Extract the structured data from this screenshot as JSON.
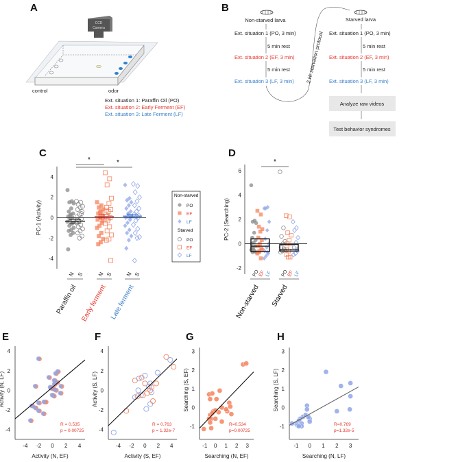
{
  "panel_a": {
    "label": "A",
    "camera_line1": "CCD",
    "camera_line2": "Camera",
    "control": "control",
    "odor": "odor",
    "legend": [
      "Ext. situation 1: Paraffin Oil (PO)",
      "Ext. situation 2: Early Ferment (EF)",
      "Ext. situation 3: Late Ferment (LF)"
    ]
  },
  "panel_b": {
    "label": "B",
    "non_starved": "Non-starved larva",
    "starved": "Starved larva",
    "step1": "Ext. situation 1 (PO, 3 min)",
    "step2": "Ext. situation 2 (EF, 3 min)",
    "step3": "Ext. situation 3 (LF, 3 min)",
    "rest": "5 min rest",
    "protocol": "2 Hr starvation protocol",
    "box1": "Analyze raw videos",
    "box2": "Test behavior syndromes"
  },
  "colors": {
    "PO": "#8a8a8a",
    "EF": "#f4845f",
    "LF": "#8fa6e8",
    "red_text": "#e8352a",
    "blue_text": "#3a7ec9"
  },
  "legend": {
    "non_starved": "Non-starved",
    "starved": "Starved",
    "items": [
      "PO",
      "EF",
      "LF"
    ]
  },
  "chart_data": [
    {
      "panel": "C",
      "type": "scatter",
      "ylabel": "PC-1 (Activity)",
      "ylim": [
        -5,
        5
      ],
      "yticks": [
        -4,
        -2,
        0,
        2,
        4
      ],
      "significance": [
        "*",
        "*"
      ],
      "groups": [
        {
          "name": "Paraffin oil",
          "key": "PO",
          "mean": -0.35,
          "sem": 0.18,
          "N": [
            2.7,
            1.6,
            1.5,
            1.4,
            0.9,
            0.6,
            0.4,
            0.3,
            0.1,
            0,
            -0.2,
            -0.4,
            -0.6,
            -0.8,
            -1,
            -1.2,
            -1.3,
            -1.5,
            -1.7,
            -3.1,
            -0.5,
            0.2
          ],
          "S": [
            1.6,
            1.5,
            1.3,
            1.1,
            1,
            0.8,
            0.6,
            0.3,
            0.1,
            -0.1,
            -0.3,
            -0.5,
            -0.7,
            -0.9,
            -1.1,
            -1.3,
            -1.5,
            -1.8,
            -2,
            -0.2,
            0.4
          ]
        },
        {
          "name": "Early ferment",
          "key": "EF",
          "mean": 0.1,
          "sem": 0.2,
          "N": [
            1.5,
            1.2,
            1,
            0.8,
            0.6,
            0.4,
            0.2,
            0,
            -0.2,
            -0.5,
            -0.8,
            -1,
            -1.5,
            -1.8,
            -2.1,
            -2.4,
            -2.6,
            -0.3,
            0.5
          ],
          "S": [
            4.4,
            3.8,
            3.2,
            1.9,
            1.4,
            1,
            0.8,
            0.6,
            0.3,
            0,
            -0.3,
            -0.6,
            -0.9,
            -1.3,
            -1.7,
            -2.1,
            -2.2,
            -4.2,
            -0.1,
            0.7
          ]
        },
        {
          "name": "Late ferment",
          "key": "LF",
          "mean": 0.15,
          "sem": 0.17,
          "N": [
            3.2,
            1.9,
            1.7,
            1.5,
            1.2,
            0.9,
            0.6,
            0.3,
            0,
            -0.2,
            -0.5,
            -0.8,
            -1.2,
            -1.5,
            -1.8,
            -2.2,
            -3,
            0.1,
            0.4
          ],
          "S": [
            3.3,
            3.1,
            2.5,
            2,
            1.6,
            1.2,
            0.9,
            0.6,
            0.3,
            0,
            -0.3,
            -0.7,
            -1.1,
            -1.5,
            -1.9,
            -2,
            -4.2,
            0.2
          ]
        }
      ],
      "sublabels": [
        "N",
        "S"
      ]
    },
    {
      "panel": "D",
      "type": "scatter",
      "ylabel": "PC-2 (Searching)",
      "ylim": [
        -2.5,
        6.5
      ],
      "yticks": [
        -2,
        0,
        2,
        4,
        6
      ],
      "significance": [
        "*"
      ],
      "groups": [
        {
          "name": "Non-starved",
          "box": {
            "q1": -0.65,
            "median": -0.2,
            "q3": 0.4
          },
          "PO": [
            4.8,
            1.9,
            1.8,
            1.7,
            0.9,
            0.5,
            0.3,
            0.1,
            0,
            -0.2,
            -0.4,
            -0.5,
            -0.6,
            -0.7,
            -0.7,
            -0.6,
            -0.3
          ],
          "EF": [
            2.7,
            2.4,
            1.4,
            1.2,
            1,
            0.5,
            0.3,
            0,
            -0.2,
            -0.4,
            -0.6,
            -0.8,
            -1.2,
            -0.7,
            -0.5
          ],
          "LF": [
            2.9,
            3,
            2.9,
            1.8,
            1.1,
            0.4,
            0,
            -0.3,
            -0.6,
            -0.8,
            -1,
            -1.2,
            -0.7
          ]
        },
        {
          "name": "Starved",
          "box": {
            "q1": -0.6,
            "median": -0.45,
            "q3": -0.05
          },
          "PO": [
            5.9,
            1.3,
            0.6,
            0.2,
            0,
            -0.3,
            -0.5,
            -0.6,
            -0.7,
            -0.4
          ],
          "EF": [
            2.3,
            2.2,
            0.9,
            0.7,
            0.3,
            0,
            -0.3,
            -0.6,
            -0.9,
            -1.1,
            -1.1,
            -0.5
          ],
          "LF": [
            1.8,
            1.3,
            1.1,
            0.5,
            0.1,
            -0.3,
            -0.6,
            -0.8,
            -0.9,
            -0.5
          ]
        }
      ],
      "sublabels": [
        "PO",
        "EF",
        "LF"
      ]
    },
    {
      "panel": "E",
      "type": "scatter",
      "xlabel": "Activity (N, EF)",
      "ylabel": "Activity (N, LF)",
      "xlim": [
        -5.5,
        4.8
      ],
      "ylim": [
        -5,
        4.5
      ],
      "xticks": [
        -4,
        -2,
        0,
        2,
        4
      ],
      "yticks": [
        -4,
        -2,
        0,
        2,
        4
      ],
      "marker": "filled-mix",
      "stats": [
        "R = 0.535",
        "p = 0.00725"
      ],
      "fit": [
        [
          -5.5,
          -2.9
        ],
        [
          4.8,
          3.1
        ]
      ],
      "points": [
        [
          -2,
          3.2
        ],
        [
          -2.5,
          0.4
        ],
        [
          0.5,
          1.7
        ],
        [
          0.8,
          1.9
        ],
        [
          -0.5,
          1.3
        ],
        [
          0.3,
          1
        ],
        [
          0.7,
          0.8
        ],
        [
          1.3,
          0.4
        ],
        [
          -0.3,
          0.3
        ],
        [
          0,
          0.2
        ],
        [
          0.2,
          0.1
        ],
        [
          0.5,
          0
        ],
        [
          1.2,
          -0.3
        ],
        [
          0,
          -0.5
        ],
        [
          0.2,
          -0.6
        ],
        [
          -1,
          -1.2
        ],
        [
          -1.2,
          -1.2
        ],
        [
          -2,
          -1.3
        ],
        [
          -3,
          -1.6
        ],
        [
          -2.5,
          -1.8
        ],
        [
          -2,
          -2.1
        ],
        [
          -1.3,
          -2.4
        ],
        [
          -3.2,
          -3.1
        ],
        [
          0.3,
          0.6
        ],
        [
          -0.2,
          0.2
        ]
      ]
    },
    {
      "panel": "F",
      "type": "scatter",
      "xlabel": "Activity (S, EF)",
      "ylabel": "Activity (S, LF)",
      "xlim": [
        -5.5,
        4.8
      ],
      "ylim": [
        -5,
        4.5
      ],
      "xticks": [
        -4,
        -2,
        0,
        2,
        4
      ],
      "yticks": [
        -4,
        -2,
        0,
        2,
        4
      ],
      "marker": "open-mix",
      "stats": [
        "R = 0.763",
        "p = 1.32e-7"
      ],
      "fit": [
        [
          -5.5,
          -3.6
        ],
        [
          4.8,
          3.2
        ]
      ],
      "points": [
        [
          3.2,
          3.4
        ],
        [
          3.8,
          3.1
        ],
        [
          4.3,
          2.4
        ],
        [
          1.9,
          1.8
        ],
        [
          -1.5,
          1
        ],
        [
          -0.9,
          1.2
        ],
        [
          -0.5,
          1.3
        ],
        [
          0,
          1.5
        ],
        [
          0,
          0.7
        ],
        [
          0.8,
          0.7
        ],
        [
          1.7,
          0.7
        ],
        [
          0.6,
          0.4
        ],
        [
          1,
          0.3
        ],
        [
          -1,
          0
        ],
        [
          0.8,
          0
        ],
        [
          1,
          -0.2
        ],
        [
          0.3,
          -0.3
        ],
        [
          -1.5,
          -0.7
        ],
        [
          -1.1,
          -0.6
        ],
        [
          -0.6,
          -0.5
        ],
        [
          -0.3,
          -0.5
        ],
        [
          0.8,
          -1.4
        ],
        [
          1.2,
          -1.1
        ],
        [
          0.2,
          -1.9
        ],
        [
          -2.8,
          -2.1
        ],
        [
          -4.7,
          -4.3
        ]
      ]
    },
    {
      "panel": "G",
      "type": "scatter",
      "xlabel": "Searching (N, EF)",
      "ylabel": "Searching (S, EF)",
      "xlim": [
        -1.5,
        3.6
      ],
      "ylim": [
        -1.7,
        3.2
      ],
      "xticks": [
        -1,
        0,
        1,
        2,
        3
      ],
      "yticks": [
        -1,
        0,
        1,
        2,
        3
      ],
      "marker": "EF",
      "stats": [
        "R=0.534",
        "p=0.00725"
      ],
      "fit": [
        [
          -1.5,
          -1.1
        ],
        [
          3.6,
          1.9
        ]
      ],
      "points": [
        [
          2.6,
          2.3
        ],
        [
          2.9,
          2.35
        ],
        [
          -0.6,
          0.7
        ],
        [
          -0.3,
          0.75
        ],
        [
          0.4,
          0.9
        ],
        [
          -0.5,
          0.45
        ],
        [
          0.1,
          0.45
        ],
        [
          1.3,
          0.25
        ],
        [
          1.4,
          0.05
        ],
        [
          0.6,
          0
        ],
        [
          1.1,
          -0.2
        ],
        [
          1,
          -0.1
        ],
        [
          1.5,
          -0.35
        ],
        [
          0.3,
          -0.25
        ],
        [
          -0.2,
          -0.2
        ],
        [
          0,
          -0.15
        ],
        [
          -0.5,
          -0.4
        ],
        [
          -0.3,
          -0.3
        ],
        [
          -0.6,
          -0.6
        ],
        [
          -0.4,
          -0.6
        ],
        [
          0,
          -0.6
        ],
        [
          0.6,
          -0.75
        ],
        [
          -0.5,
          -0.8
        ],
        [
          -1.1,
          -1.15
        ],
        [
          -0.4,
          -1.1
        ]
      ]
    },
    {
      "panel": "H",
      "type": "scatter",
      "xlabel": "Searching (N, LF)",
      "ylabel": "Searching (S, LF)",
      "xlim": [
        -1.5,
        3.6
      ],
      "ylim": [
        -1.7,
        3.2
      ],
      "xticks": [
        -1,
        0,
        1,
        2,
        3
      ],
      "yticks": [
        -1,
        0,
        1,
        2,
        3
      ],
      "marker": "LF",
      "stats": [
        "R=0.769",
        "p=1.32e-5"
      ],
      "fit": [
        [
          -1.5,
          -0.95
        ],
        [
          3.6,
          1.1
        ]
      ],
      "points": [
        [
          1.2,
          1.9
        ],
        [
          2.3,
          1.15
        ],
        [
          3,
          1.3
        ],
        [
          3,
          0.6
        ],
        [
          2,
          -0.2
        ],
        [
          2.95,
          -0.1
        ],
        [
          -0.2,
          0.1
        ],
        [
          -0.2,
          -0.1
        ],
        [
          -0.5,
          -0.5
        ],
        [
          -0.3,
          -0.4
        ],
        [
          0,
          -0.6
        ],
        [
          0,
          -0.75
        ],
        [
          -0.7,
          -0.6
        ],
        [
          -0.8,
          -0.7
        ],
        [
          -1,
          -0.85
        ],
        [
          -0.9,
          -0.95
        ],
        [
          -0.6,
          -0.85
        ],
        [
          -0.6,
          -1
        ],
        [
          -1.3,
          -0.85
        ],
        [
          -0.8,
          -1
        ],
        [
          -0.1,
          -0.5
        ]
      ]
    }
  ]
}
